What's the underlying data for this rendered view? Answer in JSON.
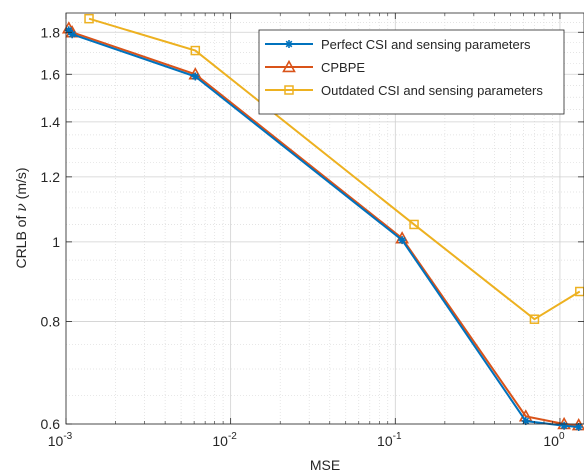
{
  "chart_data": {
    "type": "line",
    "xscale": "log",
    "yscale": "log",
    "xlabel": "MSE",
    "ylabel_prefix": "CRLB of",
    "ylabel_symbol": "ν",
    "ylabel_unit": "(m/s)",
    "xlim": [
      0.001,
      1.4
    ],
    "ylim": [
      0.6,
      1.9
    ],
    "grid": true,
    "legend_position": "top-right",
    "x_ticks": [
      {
        "value": 0.001,
        "base": "10",
        "exp": "-3"
      },
      {
        "value": 0.01,
        "base": "10",
        "exp": "-2"
      },
      {
        "value": 0.1,
        "base": "10",
        "exp": "-1"
      },
      {
        "value": 1,
        "base": "10",
        "exp": "0"
      }
    ],
    "y_ticks": [
      {
        "value": 0.6,
        "label": "0.6"
      },
      {
        "value": 0.8,
        "label": "0.8"
      },
      {
        "value": 1.0,
        "label": "1"
      },
      {
        "value": 1.2,
        "label": "1.2"
      },
      {
        "value": 1.4,
        "label": "1.4"
      },
      {
        "value": 1.6,
        "label": "1.6"
      },
      {
        "value": 1.8,
        "label": "1.8"
      }
    ],
    "series": [
      {
        "name": "Perfect CSI and sensing parameters",
        "color": "#0072BD",
        "marker": "asterisk",
        "x": [
          0.00104,
          0.00109,
          0.0061,
          0.11,
          0.62,
          1.06,
          1.3
        ],
        "y": [
          1.81,
          1.79,
          1.59,
          1.005,
          0.605,
          0.597,
          0.595
        ]
      },
      {
        "name": "CPBPE",
        "color": "#D95319",
        "marker": "triangle",
        "x": [
          0.00104,
          0.00109,
          0.0061,
          0.11,
          0.62,
          1.06,
          1.3
        ],
        "y": [
          1.82,
          1.8,
          1.6,
          1.01,
          0.613,
          0.6,
          0.598
        ]
      },
      {
        "name": "Outdated CSI and sensing parameters",
        "color": "#EDB120",
        "marker": "square",
        "x": [
          0.00138,
          0.0061,
          0.13,
          0.7,
          1.32
        ],
        "y": [
          1.87,
          1.71,
          1.05,
          0.805,
          0.87
        ]
      }
    ]
  }
}
